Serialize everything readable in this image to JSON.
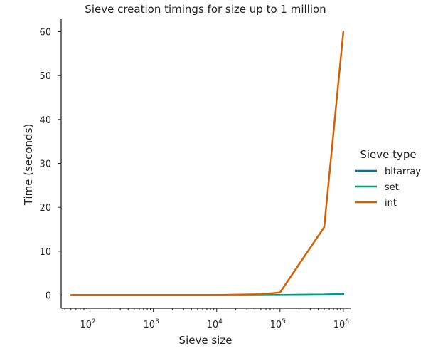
{
  "chart_data": {
    "type": "line",
    "title": "Sieve creation timings for size up to 1 million",
    "xlabel": "Sieve size",
    "ylabel": "Time (seconds)",
    "xscale": "log",
    "xlim": [
      35,
      1300000
    ],
    "ylim": [
      -3,
      63
    ],
    "yticks": [
      0,
      10,
      20,
      30,
      40,
      50,
      60
    ],
    "xticks": [
      {
        "value": 100,
        "base": "10",
        "exp": "2"
      },
      {
        "value": 1000,
        "base": "10",
        "exp": "3"
      },
      {
        "value": 10000,
        "base": "10",
        "exp": "4"
      },
      {
        "value": 100000,
        "base": "10",
        "exp": "5"
      },
      {
        "value": 1000000,
        "base": "10",
        "exp": "6"
      }
    ],
    "grid": false,
    "legend": {
      "title": "Sieve type",
      "placement": "right"
    },
    "series": [
      {
        "name": "bitarray",
        "color": "#0072b2",
        "x": [
          50,
          100,
          500,
          1000,
          5000,
          10000,
          50000,
          100000,
          500000,
          1000000
        ],
        "y": [
          0,
          0,
          0,
          0,
          0,
          0,
          0.01,
          0.02,
          0.1,
          0.2
        ]
      },
      {
        "name": "set",
        "color": "#009e73",
        "x": [
          50,
          100,
          500,
          1000,
          5000,
          10000,
          50000,
          100000,
          500000,
          1000000
        ],
        "y": [
          0,
          0,
          0,
          0,
          0,
          0,
          0.02,
          0.05,
          0.15,
          0.3
        ]
      },
      {
        "name": "int",
        "color": "#d55e00",
        "x": [
          50,
          100,
          500,
          1000,
          5000,
          10000,
          50000,
          100000,
          500000,
          1000000
        ],
        "y": [
          0,
          0,
          0,
          0,
          0,
          0.02,
          0.2,
          0.6,
          15.5,
          60
        ]
      }
    ]
  }
}
